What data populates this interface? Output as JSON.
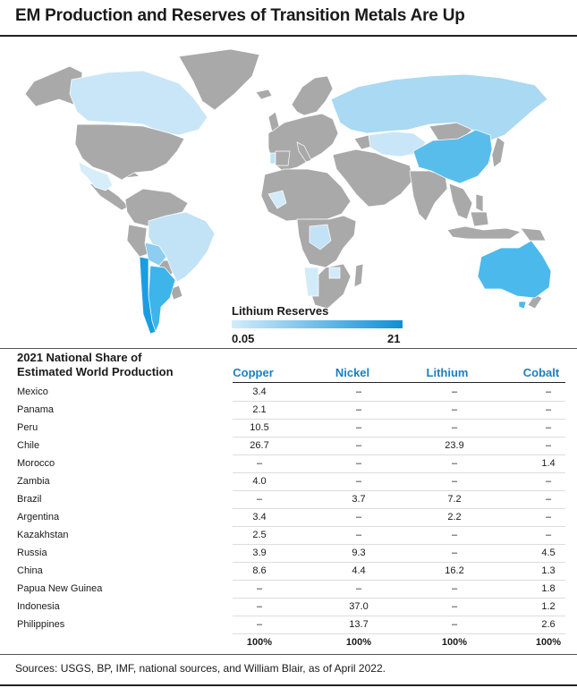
{
  "title": "EM Production and Reserves of Transition Metals Are Up",
  "legend": {
    "title": "Lithium Reserves",
    "min_label": "0.05",
    "max_label": "21",
    "color_low": "#d3ecfa",
    "color_high": "#0f8fd6"
  },
  "colors": {
    "no_data": "#a9a9a9",
    "header_accent": "#1e7fc1"
  },
  "table": {
    "row_header": "2021 National Share of Estimated World Production",
    "row_header_line1": "2021 National Share of",
    "row_header_line2": "Estimated World Production",
    "columns": [
      "Copper",
      "Nickel",
      "Lithium",
      "Cobalt"
    ],
    "rows": [
      {
        "country": "Mexico",
        "values": [
          "3.4",
          "–",
          "–",
          "–"
        ]
      },
      {
        "country": "Panama",
        "values": [
          "2.1",
          "–",
          "–",
          "–"
        ]
      },
      {
        "country": "Peru",
        "values": [
          "10.5",
          "–",
          "–",
          "–"
        ]
      },
      {
        "country": "Chile",
        "values": [
          "26.7",
          "–",
          "23.9",
          "–"
        ]
      },
      {
        "country": "Morocco",
        "values": [
          "–",
          "–",
          "–",
          "1.4"
        ]
      },
      {
        "country": "Zambia",
        "values": [
          "4.0",
          "–",
          "–",
          "–"
        ]
      },
      {
        "country": "Brazil",
        "values": [
          "–",
          "3.7",
          "7.2",
          "–"
        ]
      },
      {
        "country": "Argentina",
        "values": [
          "3.4",
          "–",
          "2.2",
          "–"
        ]
      },
      {
        "country": "Kazakhstan",
        "values": [
          "2.5",
          "–",
          "–",
          "–"
        ]
      },
      {
        "country": "Russia",
        "values": [
          "3.9",
          "9.3",
          "–",
          "4.5"
        ]
      },
      {
        "country": "China",
        "values": [
          "8.6",
          "4.4",
          "16.2",
          "1.3"
        ]
      },
      {
        "country": "Papua New Guinea",
        "values": [
          "–",
          "–",
          "–",
          "1.8"
        ]
      },
      {
        "country": "Indonesia",
        "values": [
          "–",
          "37.0",
          "–",
          "1.2"
        ]
      },
      {
        "country": "Philippines",
        "values": [
          "–",
          "13.7",
          "–",
          "2.6"
        ]
      }
    ],
    "totals": [
      "100%",
      "100%",
      "100%",
      "100%"
    ]
  },
  "chart_data": [
    {
      "type": "choropleth-map",
      "title": "Lithium Reserves",
      "scale": {
        "min": 0.05,
        "max": 21
      },
      "shaded_countries": [
        "Canada",
        "United States",
        "Mexico",
        "Brazil",
        "Argentina",
        "Chile",
        "Bolivia",
        "Portugal",
        "Mali",
        "DR Congo",
        "Zimbabwe",
        "Namibia",
        "Russia",
        "Kazakhstan",
        "China",
        "Australia"
      ]
    },
    {
      "type": "table",
      "categories": [
        "Mexico",
        "Panama",
        "Peru",
        "Chile",
        "Morocco",
        "Zambia",
        "Brazil",
        "Argentina",
        "Kazakhstan",
        "Russia",
        "China",
        "Papua New Guinea",
        "Indonesia",
        "Philippines"
      ],
      "series": [
        {
          "name": "Copper",
          "values": [
            3.4,
            2.1,
            10.5,
            26.7,
            null,
            4.0,
            null,
            3.4,
            2.5,
            3.9,
            8.6,
            null,
            null,
            null
          ]
        },
        {
          "name": "Nickel",
          "values": [
            null,
            null,
            null,
            null,
            null,
            null,
            3.7,
            null,
            null,
            9.3,
            4.4,
            null,
            37.0,
            13.7
          ]
        },
        {
          "name": "Lithium",
          "values": [
            null,
            null,
            null,
            23.9,
            null,
            null,
            7.2,
            2.2,
            null,
            null,
            16.2,
            null,
            null,
            null
          ]
        },
        {
          "name": "Cobalt",
          "values": [
            null,
            null,
            null,
            null,
            1.4,
            null,
            null,
            null,
            null,
            4.5,
            1.3,
            1.8,
            1.2,
            2.6
          ]
        }
      ]
    }
  ],
  "source": "Sources: USGS, BP, IMF, national sources, and William Blair, as of April 2022."
}
